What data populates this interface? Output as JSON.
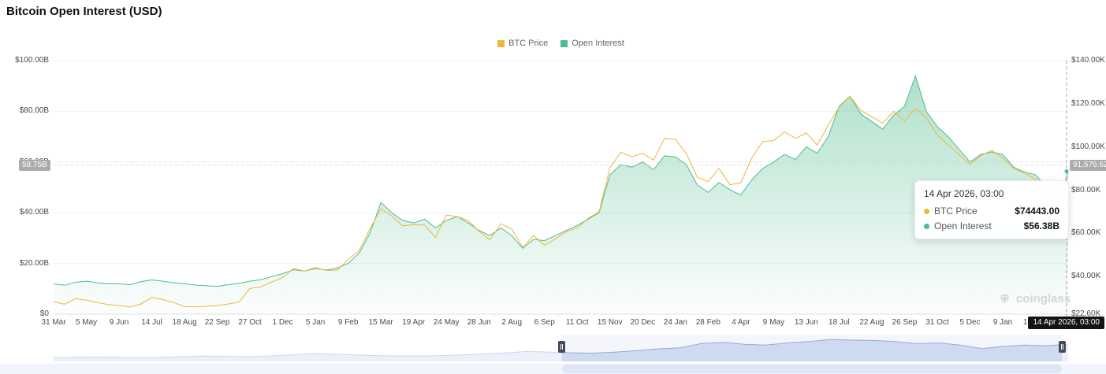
{
  "title": "Bitcoin Open Interest (USD)",
  "legend": {
    "items": [
      {
        "label": "BTC Price"
      },
      {
        "label": "Open Interest"
      }
    ]
  },
  "tooltip": {
    "title": "14 Apr 2026, 03:00",
    "rows": [
      {
        "label": "BTC Price",
        "value": "$74443.00"
      },
      {
        "label": "Open Interest",
        "value": "$56.38B"
      }
    ]
  },
  "crosshair": {
    "left_label": "58.75B",
    "right_label": "91,576.62",
    "date_label": "14 Apr 2026, 03:00"
  },
  "watermark": {
    "text": "coinglass"
  },
  "chart_data": {
    "type": "line",
    "title": "Bitcoin Open Interest (USD)",
    "legend_position": "top-center",
    "grid": "horizontal",
    "x_tick_count": 31,
    "x_step_ticks": 0.33333333,
    "x_tick_labels": [
      "31 Mar",
      "5 May",
      "9 Jun",
      "14 Jul",
      "18 Aug",
      "22 Sep",
      "27 Oct",
      "1 Dec",
      "5 Jan",
      "9 Feb",
      "15 Mar",
      "19 Apr",
      "24 May",
      "28 Jun",
      "2 Aug",
      "6 Sep",
      "11 Oct",
      "15 Nov",
      "20 Dec",
      "24 Jan",
      "28 Feb",
      "4 Apr",
      "9 May",
      "13 Jun",
      "18 Jul",
      "22 Aug",
      "26 Sep",
      "31 Oct",
      "5 Dec",
      "9 Jan",
      "13 Feb"
    ],
    "x_end_label": "14 Apr 2026, 03:00",
    "left_axis": {
      "title": "Open Interest",
      "unit": "USD billions",
      "min": 0,
      "max": 100,
      "tick_values": [
        100,
        80,
        60,
        40,
        20,
        0
      ],
      "tick_labels": [
        "$100.00B",
        "$80.00B",
        "$60.00B",
        "$40.00B",
        "$20.00B",
        "$0"
      ]
    },
    "right_axis": {
      "title": "BTC Price",
      "unit": "USD thousands",
      "min": 22.6,
      "max": 140,
      "tick_values": [
        140,
        120,
        100,
        80,
        60,
        40,
        22.6
      ],
      "tick_labels": [
        "$140.00K",
        "$120.00K",
        "$100.00K",
        "$80.00K",
        "$60.00K",
        "$40.00K",
        "$22.60K"
      ]
    },
    "series": [
      {
        "name": "BTC Price",
        "axis": "right",
        "type": "line",
        "color": "#EDB63D",
        "values": [
          28.4,
          27.2,
          29.8,
          29.1,
          28.0,
          27.0,
          26.6,
          25.9,
          27.3,
          30.3,
          29.4,
          28.0,
          26.1,
          26.0,
          26.3,
          26.6,
          27.3,
          28.2,
          34.5,
          35.2,
          37.5,
          39.5,
          43.8,
          42.5,
          44.2,
          42.8,
          43.0,
          47.8,
          52.0,
          62.0,
          71.5,
          68.0,
          63.5,
          64.0,
          63.8,
          58.2,
          68.5,
          67.8,
          66.0,
          61.0,
          57.0,
          64.5,
          62.0,
          53.5,
          59.0,
          54.5,
          57.5,
          60.8,
          62.5,
          67.0,
          70.0,
          90.5,
          97.5,
          95.5,
          97.0,
          94.0,
          104.0,
          103.5,
          97.0,
          86.0,
          84.0,
          90.0,
          82.5,
          83.5,
          95.0,
          102.5,
          103.0,
          107.0,
          104.0,
          106.5,
          101.0,
          110.0,
          118.5,
          123.5,
          117.0,
          114.0,
          111.0,
          116.5,
          112.0,
          118.0,
          113.5,
          105.5,
          101.0,
          96.5,
          92.0,
          96.0,
          98.5,
          95.0,
          90.0,
          88.0,
          85.0,
          74.0,
          61.0,
          74.443
        ]
      },
      {
        "name": "Open Interest",
        "axis": "left",
        "type": "area",
        "color": "#4FBB8C",
        "fill_top": "rgba(79,187,140,0.45)",
        "fill_bottom": "rgba(79,187,140,0.02)",
        "values": [
          12.0,
          11.4,
          12.6,
          13.0,
          12.4,
          12.0,
          12.0,
          11.6,
          12.8,
          13.5,
          13.0,
          12.4,
          12.0,
          11.5,
          11.2,
          11.0,
          11.6,
          12.2,
          13.0,
          13.6,
          14.8,
          16.0,
          17.5,
          17.0,
          18.0,
          17.4,
          18.2,
          20.0,
          24.0,
          32.0,
          44.0,
          40.0,
          37.0,
          36.0,
          37.5,
          34.0,
          37.0,
          38.5,
          36.0,
          33.0,
          31.0,
          34.0,
          31.0,
          26.0,
          29.5,
          29.0,
          31.0,
          33.0,
          35.0,
          37.5,
          40.0,
          55.0,
          59.0,
          58.0,
          60.0,
          57.0,
          62.5,
          62.0,
          59.0,
          51.0,
          48.0,
          52.0,
          49.0,
          47.0,
          53.0,
          57.5,
          60.0,
          63.0,
          61.0,
          66.0,
          63.5,
          70.0,
          82.0,
          86.0,
          79.0,
          76.0,
          73.0,
          78.5,
          82.0,
          94.0,
          80.0,
          74.0,
          70.0,
          65.0,
          60.0,
          63.0,
          64.0,
          63.0,
          58.0,
          56.0,
          55.0,
          50.0,
          42.0,
          56.38
        ]
      }
    ],
    "crosshair": {
      "x_tick": 31,
      "left_value": 58.75,
      "right_value": 91.57662
    },
    "navigator": {
      "area_color": "#CDD9F3",
      "line_color": "#9AACDE",
      "selection_start": 0.501,
      "selection_end": 0.994,
      "values": [
        6,
        7,
        8,
        7,
        6,
        7,
        9,
        11,
        10,
        9,
        11,
        14,
        18,
        16,
        14,
        12,
        11,
        11,
        12,
        14,
        17,
        20,
        24,
        22,
        20,
        19,
        22,
        26,
        31,
        34,
        46,
        50,
        44,
        42,
        48,
        52,
        58,
        56,
        55,
        52,
        46,
        48,
        42,
        32,
        38,
        42,
        40,
        44
      ]
    }
  }
}
